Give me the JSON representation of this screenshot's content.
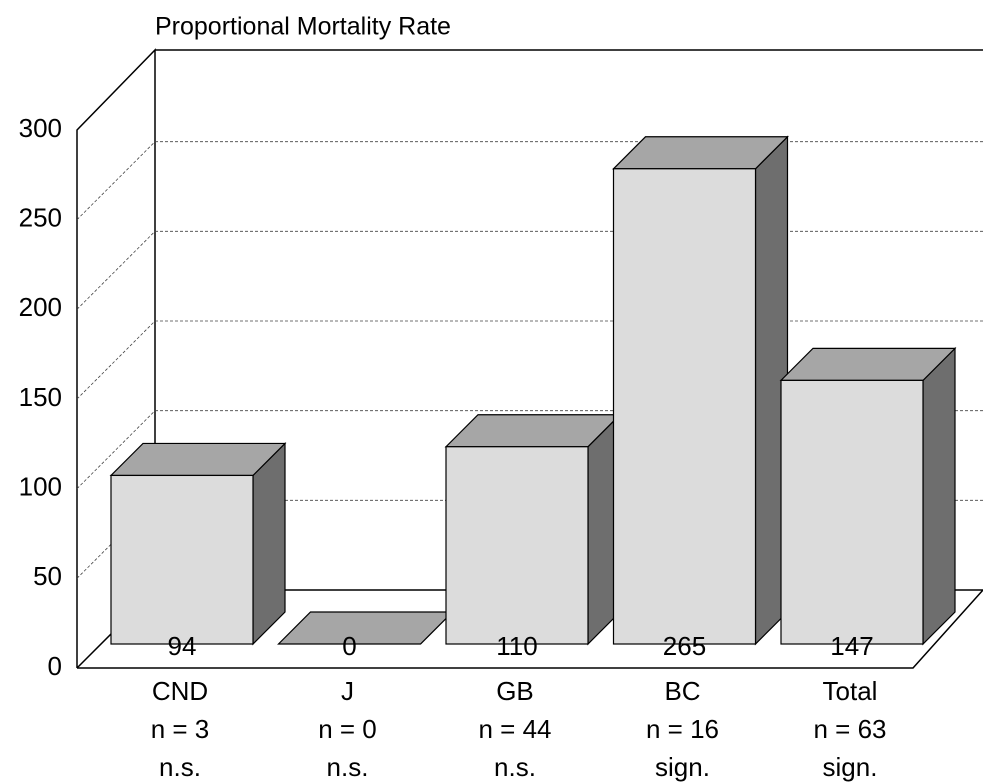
{
  "chart_data": {
    "type": "bar3d",
    "title": "Proportional Mortality Rate",
    "categories": [
      [
        "CND",
        "n = 3",
        "n.s."
      ],
      [
        "J",
        "n = 0",
        "n.s."
      ],
      [
        "GB",
        "n = 44",
        "n.s."
      ],
      [
        "BC",
        "n = 16",
        "sign."
      ],
      [
        "Total",
        "n = 63",
        "sign."
      ]
    ],
    "values": [
      94,
      0,
      110,
      265,
      147
    ],
    "colors": {
      "front": "#dcdcdc",
      "top": "#a6a6a6",
      "side": "#6e6e6e"
    },
    "ylim": [
      0,
      300
    ],
    "yticks": [
      0,
      50,
      100,
      150,
      200,
      250,
      300
    ],
    "grid": true
  }
}
